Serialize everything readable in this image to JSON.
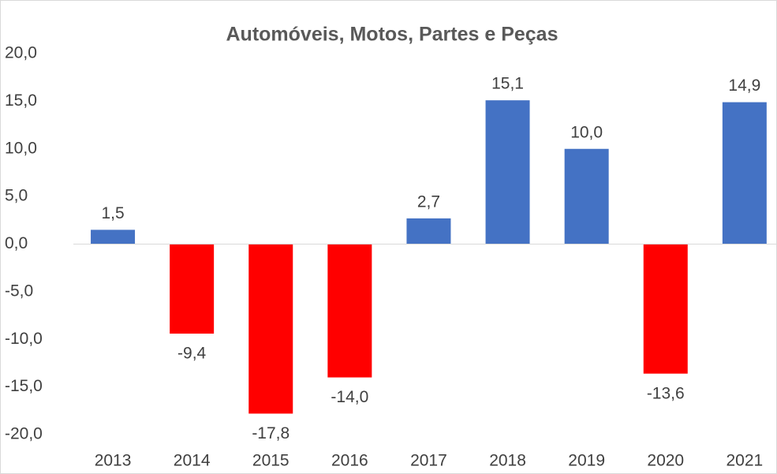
{
  "chart_data": {
    "type": "bar",
    "title": "Automóveis, Motos, Partes e Peças",
    "categories": [
      "2013",
      "2014",
      "2015",
      "2016",
      "2017",
      "2018",
      "2019",
      "2020",
      "2021"
    ],
    "values": [
      1.5,
      -9.4,
      -17.8,
      -14.0,
      2.7,
      15.1,
      10.0,
      -13.6,
      14.9
    ],
    "value_labels": [
      "1,5",
      "-9,4",
      "-17,8",
      "-14,0",
      "2,7",
      "15,1",
      "10,0",
      "-13,6",
      "14,9"
    ],
    "colors": [
      "#4472c4",
      "#ff0000",
      "#ff0000",
      "#ff0000",
      "#4472c4",
      "#4472c4",
      "#4472c4",
      "#ff0000",
      "#4472c4"
    ],
    "ylim": [
      -20,
      20
    ],
    "yticks": [
      {
        "value": -20,
        "label": "-20,0"
      },
      {
        "value": -15,
        "label": "-15,0"
      },
      {
        "value": -10,
        "label": "-10,0"
      },
      {
        "value": -5,
        "label": "-5,0"
      },
      {
        "value": 0,
        "label": "0,0"
      },
      {
        "value": 5,
        "label": "5,0"
      },
      {
        "value": 10,
        "label": "10,0"
      },
      {
        "value": 15,
        "label": "15,0"
      },
      {
        "value": 20,
        "label": "20,0"
      }
    ],
    "grid": false
  }
}
